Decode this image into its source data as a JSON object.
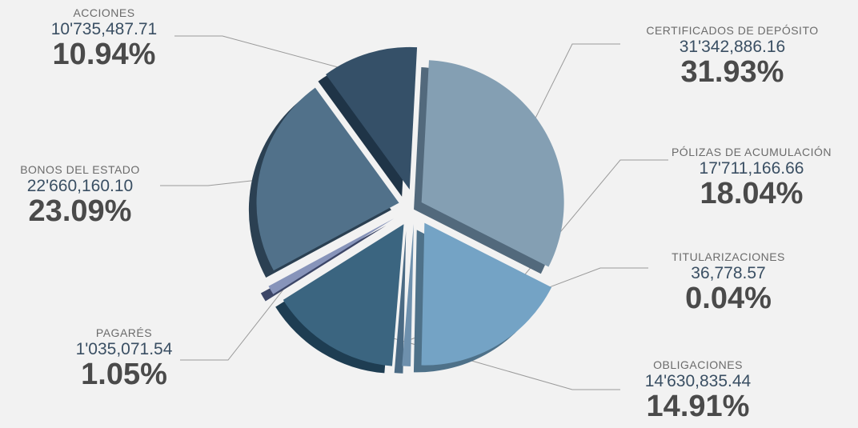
{
  "chart_data": {
    "type": "pie",
    "slices": [
      {
        "label": "CERTIFICADOS DE DEPÓSITO",
        "amount": "31'342,886.16",
        "percent": "31.93%",
        "value": 31.93,
        "color": "#849fb3",
        "side": "#52697c"
      },
      {
        "label": "PÓLIZAS DE ACUMULACIÓN",
        "amount": "17'711,166.66",
        "percent": "18.04%",
        "value": 18.04,
        "color": "#74a3c5",
        "side": "#4e7189"
      },
      {
        "label": "TITULARIZACIONES",
        "amount": "36,778.57",
        "percent": "0.04%",
        "value": 0.04,
        "color": "#6e90ad",
        "side": "#4a6a84"
      },
      {
        "label": "OBLIGACIONES",
        "amount": "14'630,835.44",
        "percent": "14.91%",
        "value": 14.91,
        "color": "#3b6580",
        "side": "#1e3d52"
      },
      {
        "label": "PAGARÉS",
        "amount": "1'035,071.54",
        "percent": "1.05%",
        "value": 1.05,
        "color": "#8794ba",
        "side": "#3c4667"
      },
      {
        "label": "BONOS DEL ESTADO",
        "amount": "22'660,160.10",
        "percent": "23.09%",
        "value": 23.09,
        "color": "#51718a",
        "side": "#2b4052"
      },
      {
        "label": "ACCIONES",
        "amount": "10'735,487.71",
        "percent": "10.94%",
        "value": 10.94,
        "color": "#355068",
        "side": "#1f3447"
      }
    ]
  }
}
